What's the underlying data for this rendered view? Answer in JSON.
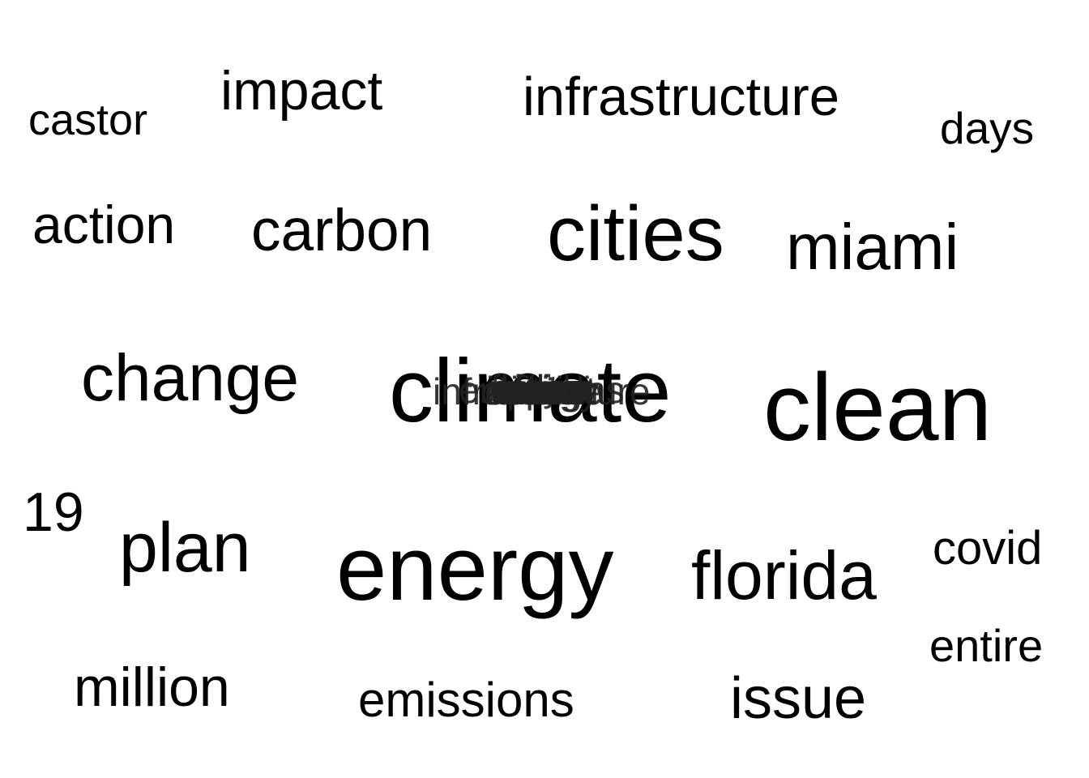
{
  "words": {
    "castor": "castor",
    "impact": "impact",
    "infrastructure": "infrastructure",
    "days": "days",
    "action": "action",
    "carbon": "carbon",
    "cities": "cities",
    "miami": "miami",
    "change": "change",
    "climate": "climate",
    "clean": "clean",
    "nineteen": "19",
    "plan": "plan",
    "energy": "energy",
    "florida": "florida",
    "covid": "covid",
    "entire": "entire",
    "million": "million",
    "emissions": "emissions",
    "issue": "issue"
  },
  "overlap_stack": [
    "castor",
    "impact",
    "infrastructure",
    "days",
    "action",
    "carbon",
    "cities",
    "miami",
    "change",
    "clean",
    "plan",
    "energy",
    "florida",
    "covid",
    "entire",
    "million",
    "emissions",
    "issue"
  ],
  "colors": {
    "text": "#000000",
    "background": "#ffffff"
  }
}
